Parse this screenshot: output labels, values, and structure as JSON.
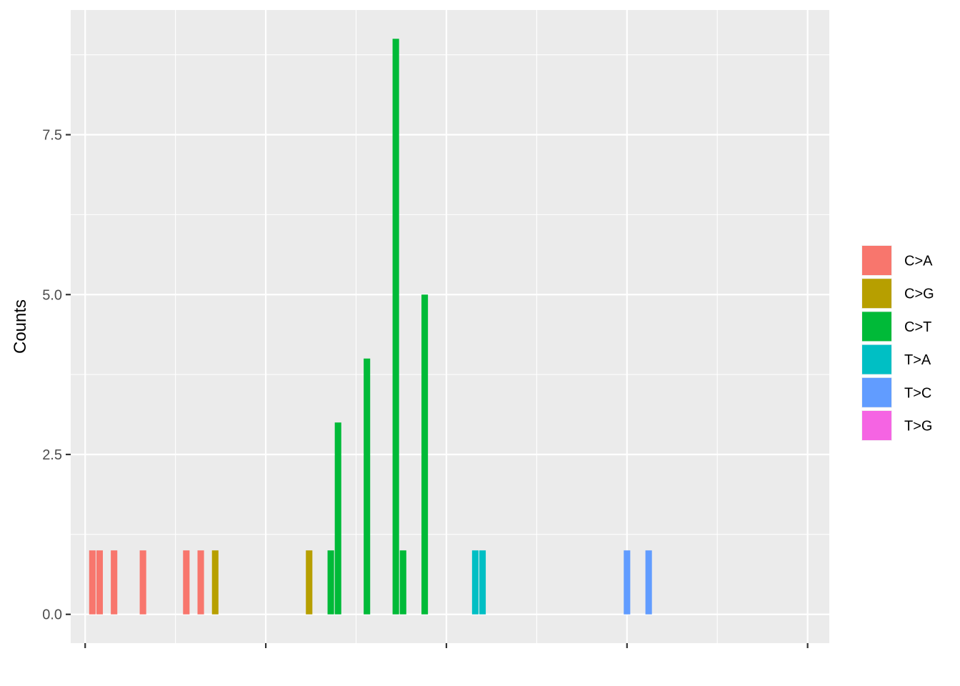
{
  "chart_data": {
    "type": "bar",
    "ylabel": "Counts",
    "xlabel": "",
    "ylim": [
      -0.45,
      9.45
    ],
    "xlim": [
      -1,
      104
    ],
    "y_ticks": [
      0,
      2.5,
      5,
      7.5
    ],
    "y_tick_labels": [
      "0.0",
      "2.5",
      "5.0",
      "7.5"
    ],
    "x_major_ticks": [
      1,
      26,
      51,
      76,
      101
    ],
    "x_minor_ticks": [
      13.5,
      38.5,
      63.5,
      88.5
    ],
    "grid": true,
    "legend_position": "right",
    "legend": [
      {
        "label": "C>A",
        "color": "#F8766D"
      },
      {
        "label": "C>G",
        "color": "#B79F00"
      },
      {
        "label": "C>T",
        "color": "#00BA38"
      },
      {
        "label": "T>A",
        "color": "#00BFC4"
      },
      {
        "label": "T>C",
        "color": "#619CFF"
      },
      {
        "label": "T>G",
        "color": "#F564E3"
      }
    ],
    "bars": [
      {
        "x": 2,
        "value": 1,
        "type": "C>A"
      },
      {
        "x": 3,
        "value": 1,
        "type": "C>A"
      },
      {
        "x": 5,
        "value": 1,
        "type": "C>A"
      },
      {
        "x": 9,
        "value": 1,
        "type": "C>A"
      },
      {
        "x": 15,
        "value": 1,
        "type": "C>A"
      },
      {
        "x": 17,
        "value": 1,
        "type": "C>A"
      },
      {
        "x": 19,
        "value": 1,
        "type": "C>G"
      },
      {
        "x": 32,
        "value": 1,
        "type": "C>G"
      },
      {
        "x": 35,
        "value": 1,
        "type": "C>T"
      },
      {
        "x": 36,
        "value": 3,
        "type": "C>T"
      },
      {
        "x": 40,
        "value": 4,
        "type": "C>T"
      },
      {
        "x": 44,
        "value": 9,
        "type": "C>T"
      },
      {
        "x": 45,
        "value": 1,
        "type": "C>T"
      },
      {
        "x": 48,
        "value": 5,
        "type": "C>T"
      },
      {
        "x": 55,
        "value": 1,
        "type": "T>A"
      },
      {
        "x": 56,
        "value": 1,
        "type": "T>A"
      },
      {
        "x": 76,
        "value": 1,
        "type": "T>C"
      },
      {
        "x": 79,
        "value": 1,
        "type": "T>C"
      }
    ]
  }
}
